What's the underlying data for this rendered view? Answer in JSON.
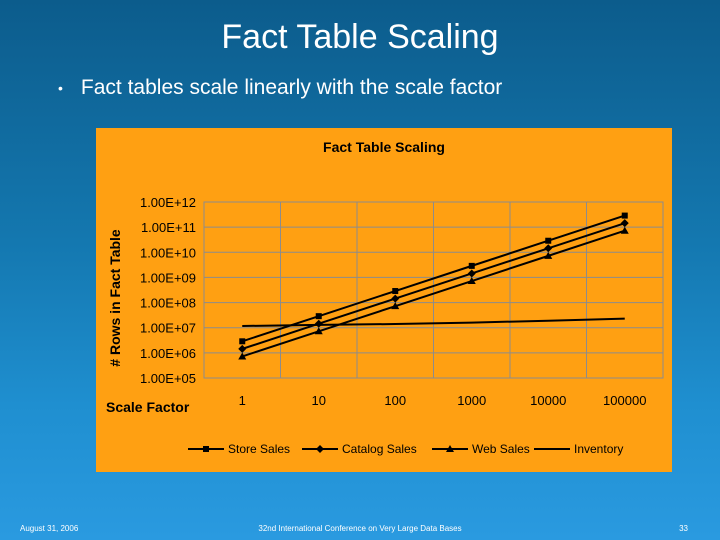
{
  "slide": {
    "title": "Fact Table Scaling",
    "bullet": "Fact tables scale linearly with the scale factor",
    "footer_left": "August 31, 2006",
    "footer_center": "32nd International Conference on Very Large Data Bases",
    "footer_right": "33"
  },
  "chart_data": {
    "type": "line",
    "title": "Fact Table Scaling",
    "xlabel": "Scale Factor",
    "ylabel": "# Rows in Fact Table",
    "x_scale": "log",
    "y_scale": "log",
    "x": [
      1,
      10,
      100,
      1000,
      10000,
      100000
    ],
    "x_tick_labels": [
      "1",
      "10",
      "100",
      "1000",
      "10000",
      "100000"
    ],
    "y_tick_values": [
      100000,
      1000000,
      10000000,
      100000000,
      1000000000,
      10000000000,
      100000000000,
      1000000000000
    ],
    "y_tick_labels": [
      "1.00E+05",
      "1.00E+06",
      "1.00E+07",
      "1.00E+08",
      "1.00E+09",
      "1.00E+10",
      "1.00E+11",
      "1.00E+12"
    ],
    "ylim": [
      100000,
      1000000000000
    ],
    "grid": true,
    "legend_position": "bottom",
    "series": [
      {
        "name": "Store Sales",
        "marker": "square",
        "values": [
          2880000,
          28800000,
          288000000,
          2880000000,
          28800000000,
          288000000000
        ]
      },
      {
        "name": "Catalog Sales",
        "marker": "diamond",
        "values": [
          1440000,
          14400000,
          144000000,
          1440000000,
          14400000000,
          144000000000
        ]
      },
      {
        "name": "Web Sales",
        "marker": "triangle",
        "values": [
          720000,
          7200000,
          72000000,
          720000000,
          7200000000,
          72000000000
        ]
      },
      {
        "name": "Inventory",
        "marker": "none",
        "values": [
          11700000,
          13000000,
          14000000,
          16000000,
          19000000,
          23000000
        ]
      }
    ],
    "colors": {
      "plot_background": "#ffa012",
      "line": "#000000",
      "grid": "#8c8c8c",
      "text": "#000000"
    }
  }
}
